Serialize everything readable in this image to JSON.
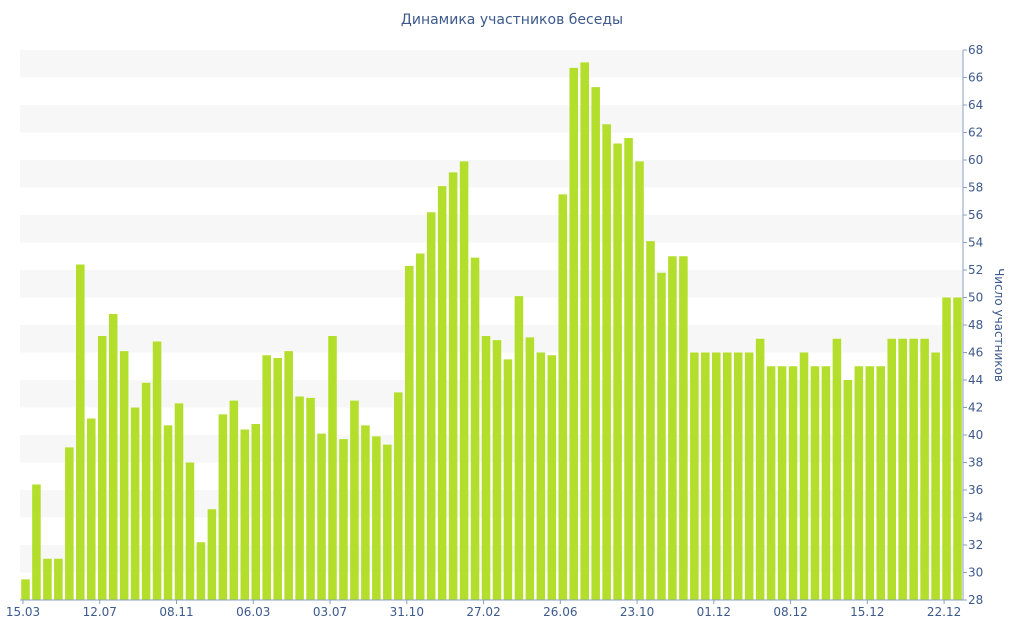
{
  "chart_data": {
    "type": "bar",
    "title": "Динамика участников беседы",
    "ylabel": "Число участников",
    "xlabel": "",
    "ylim": [
      28,
      68
    ],
    "y_ticks": [
      28,
      30,
      32,
      34,
      36,
      38,
      40,
      42,
      44,
      46,
      48,
      50,
      52,
      54,
      56,
      58,
      60,
      62,
      64,
      66,
      68
    ],
    "y_axis_side": "right",
    "grid": "horizontal alternating bands",
    "bar_color": "#b3de2b",
    "x_tick_labels": [
      {
        "index": 0,
        "label": "15.03"
      },
      {
        "index": 7,
        "label": "12.07"
      },
      {
        "index": 14,
        "label": "08.11"
      },
      {
        "index": 21,
        "label": "06.03"
      },
      {
        "index": 28,
        "label": "03.07"
      },
      {
        "index": 35,
        "label": "31.10"
      },
      {
        "index": 42,
        "label": "27.02"
      },
      {
        "index": 49,
        "label": "26.06"
      },
      {
        "index": 56,
        "label": "23.10"
      },
      {
        "index": 63,
        "label": "01.12"
      },
      {
        "index": 70,
        "label": "08.12"
      },
      {
        "index": 77,
        "label": "15.12"
      },
      {
        "index": 84,
        "label": "22.12"
      }
    ],
    "values": [
      29.5,
      36.4,
      31,
      31,
      39.1,
      52.4,
      41.2,
      47.2,
      48.8,
      46.1,
      42,
      43.8,
      46.8,
      40.7,
      42.3,
      38,
      32.2,
      34.6,
      41.5,
      42.5,
      40.4,
      40.8,
      45.8,
      45.6,
      46.1,
      42.8,
      42.7,
      40.1,
      47.2,
      39.7,
      42.5,
      40.7,
      39.9,
      39.3,
      43.1,
      52.3,
      53.2,
      56.2,
      58.1,
      59.1,
      59.9,
      52.9,
      47.2,
      46.9,
      45.5,
      50.1,
      47.1,
      46,
      45.8,
      57.5,
      66.7,
      67.1,
      65.3,
      62.6,
      61.2,
      61.6,
      59.9,
      54.1,
      51.8,
      53,
      53,
      46,
      46,
      46,
      46,
      46,
      46,
      47,
      45,
      45,
      45,
      46,
      45,
      45,
      47,
      44,
      45,
      45,
      45,
      47,
      47,
      47,
      47,
      46,
      50,
      50
    ]
  }
}
